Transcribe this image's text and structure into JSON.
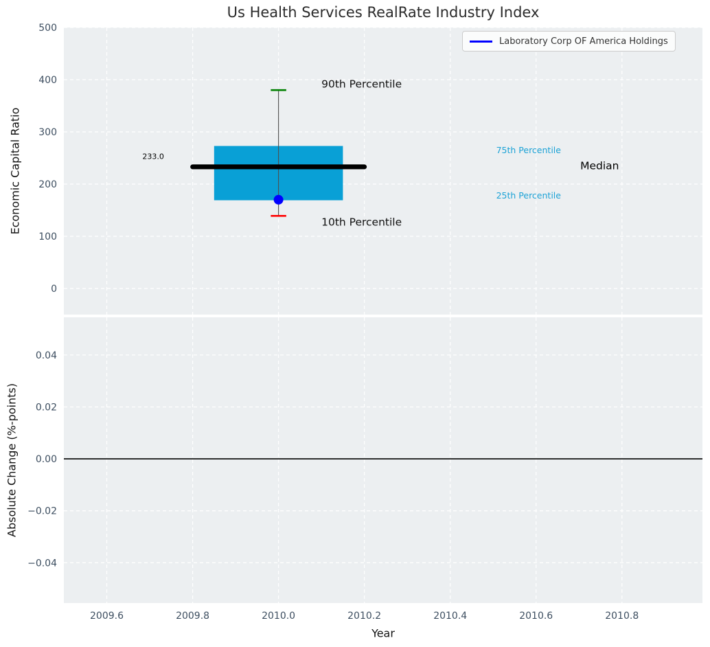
{
  "title": "Us Health Services RealRate Industry Index",
  "xlabel": "Year",
  "legend": {
    "items": [
      {
        "label": "Laboratory Corp OF America Holdings",
        "color": "#0000ff"
      }
    ]
  },
  "colors": {
    "axes_bg": "#eceff1",
    "grid": "#ffffff",
    "tick": "#3d4e60",
    "label": "#111111",
    "title": "#2b2b2b",
    "box_fill": "#09a0d6",
    "percentile_text": "#1ba2d6",
    "whisker": "#4d4d4d",
    "cap_90th": "#008000",
    "cap_10th": "#ff0000",
    "median_line": "#000000",
    "company_point": "#0000ff",
    "zero_line": "#000000"
  },
  "chart_data": [
    {
      "type": "boxplot",
      "ylabel": "Economic Capital Ratio",
      "xlabel": "Year",
      "xlim": [
        2009.5,
        2010.9875
      ],
      "ylim": [
        -50,
        500
      ],
      "xticks": [
        2009.6,
        2009.8,
        2010.0,
        2010.2,
        2010.4,
        2010.6,
        2010.8
      ],
      "xtick_labels": [
        "2009.6",
        "2009.8",
        "2010.0",
        "2010.2",
        "2010.4",
        "2010.6",
        "2010.8"
      ],
      "yticks": [
        0,
        100,
        200,
        300,
        400,
        500
      ],
      "ytick_labels": [
        "0",
        "100",
        "200",
        "300",
        "400",
        "500"
      ],
      "grid": true,
      "show_xtick_labels": false,
      "box": {
        "x": 2010.0,
        "p10": 139,
        "p25": 169,
        "median": 233,
        "p75": 273,
        "p90": 380,
        "median_label": "233.0",
        "box_half_width": 0.15,
        "median_half_width": 0.2,
        "cap_half_width": 0.018
      },
      "company_point": {
        "name": "Laboratory Corp OF America Holdings",
        "x": 2010.0,
        "y": 170,
        "radius": 7
      },
      "annotations": [
        {
          "text": "90th Percentile",
          "x": 2010.1,
          "y": 391,
          "size": 15.5,
          "color": "#111111",
          "anchor": "start"
        },
        {
          "text": "10th Percentile",
          "x": 2010.1,
          "y": 126,
          "size": 15.5,
          "color": "#111111",
          "anchor": "start"
        },
        {
          "text": "75th Percentile",
          "x": 2010.507,
          "y": 264,
          "size": 12.5,
          "color": "#1ba2d6",
          "anchor": "start"
        },
        {
          "text": "25th Percentile",
          "x": 2010.507,
          "y": 177,
          "size": 12.5,
          "color": "#1ba2d6",
          "anchor": "start"
        },
        {
          "text": "Median",
          "x": 2010.703,
          "y": 234,
          "size": 15.5,
          "color": "#000000",
          "anchor": "start"
        },
        {
          "text": "233.0",
          "x": 2009.683,
          "y": 252,
          "size": 11,
          "color": "#000000",
          "anchor": "start"
        }
      ]
    },
    {
      "type": "line",
      "ylabel": "Absolute Change (%-points)",
      "xlabel": "Year",
      "xlim": [
        2009.5,
        2010.9875
      ],
      "ylim": [
        -0.0555,
        0.0545
      ],
      "xticks": [
        2009.6,
        2009.8,
        2010.0,
        2010.2,
        2010.4,
        2010.6,
        2010.8
      ],
      "xtick_labels": [
        "2009.6",
        "2009.8",
        "2010.0",
        "2010.2",
        "2010.4",
        "2010.6",
        "2010.8"
      ],
      "yticks": [
        0.04,
        0.02,
        0.0,
        -0.02,
        -0.04
      ],
      "ytick_labels": [
        "0.04",
        "0.02",
        "0.00",
        "−0.02",
        "−0.04"
      ],
      "grid": true,
      "show_xtick_labels": true,
      "zero_line": 0.0,
      "series": []
    }
  ]
}
